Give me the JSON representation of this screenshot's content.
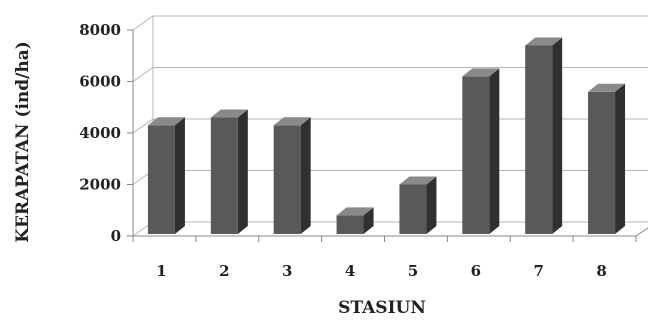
{
  "chart_data": {
    "type": "bar",
    "title": "",
    "xlabel": "STASIUN",
    "ylabel": "KERAPATAN (ind/ha)",
    "categories": [
      "1",
      "2",
      "3",
      "4",
      "5",
      "6",
      "7",
      "8"
    ],
    "values": [
      4300,
      4600,
      4300,
      800,
      2000,
      6200,
      7400,
      5600
    ],
    "ylim": [
      0,
      8000
    ],
    "yticks": [
      0,
      2000,
      4000,
      6000,
      8000
    ],
    "grid": true,
    "style": "3d-bar",
    "colors": {
      "bar_front": "#595959",
      "bar_side": "#303030",
      "bar_top": "#8a8a8a",
      "grid": "#b5b5b5",
      "axis": "#888888"
    }
  }
}
